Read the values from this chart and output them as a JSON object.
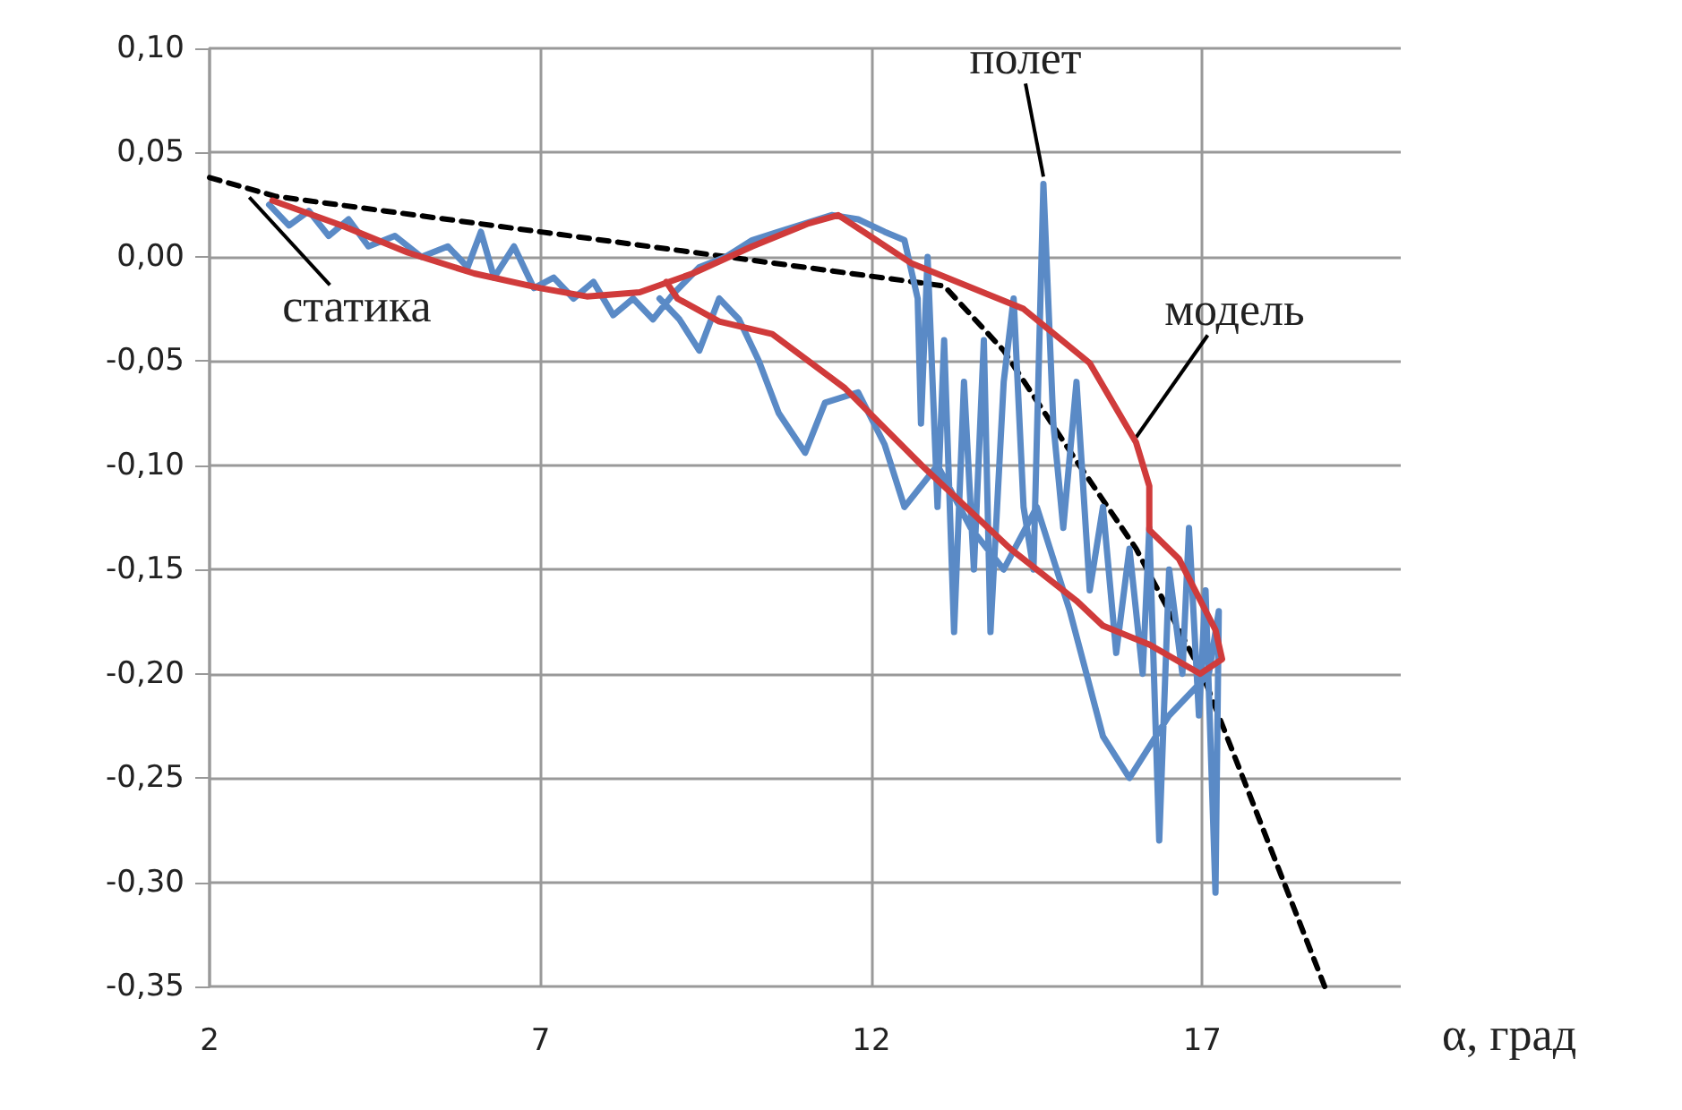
{
  "chart_data": {
    "type": "line",
    "xlabel": "α, град",
    "xlim": [
      2,
      20
    ],
    "xticks": [
      2,
      7,
      12,
      17
    ],
    "ylim": [
      -0.35,
      0.1
    ],
    "yticks": [
      {
        "value": 0.1,
        "label": "0,10"
      },
      {
        "value": 0.05,
        "label": "0,05"
      },
      {
        "value": 0,
        "label": "0,00"
      },
      {
        "value": -0.05,
        "label": "-0,05"
      },
      {
        "value": -0.1,
        "label": "-0,10"
      },
      {
        "value": -0.15,
        "label": "-0,15"
      },
      {
        "value": -0.2,
        "label": "-0,20"
      },
      {
        "value": -0.25,
        "label": "-0,25"
      },
      {
        "value": -0.3,
        "label": "-0,30"
      },
      {
        "value": -0.35,
        "label": "-0,35"
      }
    ],
    "grid": true,
    "marker": "none",
    "series": [
      {
        "color": "#000000",
        "line_style": "dashed",
        "x": [
          2,
          3,
          13.1,
          14,
          15.1,
          16,
          17,
          18.85
        ],
        "values": [
          0.038,
          0.029,
          -0.014,
          -0.045,
          -0.098,
          -0.14,
          -0.2,
          -0.35
        ]
      },
      {
        "color": "#5a8ac6",
        "line_style": "solid",
        "x": [
          2.9,
          3.2,
          3.5,
          3.8,
          4.1,
          4.4,
          4.8,
          5.2,
          5.6,
          5.9,
          6.1,
          6.3,
          6.6,
          6.9,
          7.2,
          7.5,
          7.8,
          8.1,
          8.4,
          8.7,
          9.0,
          9.4,
          9.8,
          10.2,
          10.6,
          11.0,
          11.4,
          11.8,
          12.2,
          12.5,
          12.7,
          12.75,
          12.85,
          13.0,
          13.1,
          13.25,
          13.4,
          13.55,
          13.7,
          13.8,
          14.0,
          14.15,
          14.3,
          14.45,
          14.6,
          14.75,
          14.9,
          15.1,
          15.3,
          15.5,
          15.7,
          15.9,
          16.1,
          16.2,
          16.35,
          16.5,
          16.7,
          16.8,
          16.95,
          17.05,
          17.2,
          17.25,
          17.1,
          16.5,
          15.9,
          15.5,
          15.0,
          14.5,
          14.0,
          13.5,
          13.0,
          12.5,
          12.2,
          11.8,
          11.3,
          11.0,
          10.6,
          10.3,
          10.0,
          9.7,
          9.4,
          9.1,
          8.8
        ],
        "values": [
          0.025,
          0.015,
          0.022,
          0.01,
          0.018,
          0.005,
          0.01,
          0.0,
          0.005,
          -0.005,
          0.012,
          -0.01,
          0.005,
          -0.015,
          -0.01,
          -0.02,
          -0.012,
          -0.028,
          -0.02,
          -0.03,
          -0.018,
          -0.005,
          0.0,
          0.008,
          0.012,
          0.016,
          0.02,
          0.018,
          0.012,
          0.008,
          -0.02,
          -0.08,
          0.0,
          -0.12,
          -0.04,
          -0.18,
          -0.06,
          -0.15,
          -0.04,
          -0.18,
          -0.06,
          -0.02,
          -0.12,
          -0.15,
          0.035,
          -0.08,
          -0.13,
          -0.06,
          -0.16,
          -0.12,
          -0.19,
          -0.14,
          -0.2,
          -0.13,
          -0.28,
          -0.15,
          -0.2,
          -0.13,
          -0.22,
          -0.16,
          -0.305,
          -0.17,
          -0.2,
          -0.22,
          -0.25,
          -0.23,
          -0.17,
          -0.12,
          -0.15,
          -0.13,
          -0.1,
          -0.12,
          -0.09,
          -0.065,
          -0.07,
          -0.094,
          -0.075,
          -0.05,
          -0.03,
          -0.02,
          -0.045,
          -0.03,
          -0.02
        ]
      },
      {
        "color": "#d03b3b",
        "line_style": "solid",
        "x": [
          2.95,
          4,
          5,
          6,
          7,
          7.7,
          8.5,
          9.3,
          10.2,
          11.05,
          11.5,
          12.6,
          14.3,
          15.3,
          16.0,
          16.2,
          16.2,
          16.65,
          17.2,
          17.3,
          16.97,
          16.2,
          15.5,
          15.1,
          14.1,
          12.76,
          11.6,
          10.5,
          9.7,
          9.07,
          8.9
        ],
        "values": [
          0.027,
          0.015,
          0.002,
          -0.008,
          -0.015,
          -0.019,
          -0.017,
          -0.008,
          0.005,
          0.016,
          0.02,
          -0.003,
          -0.025,
          -0.051,
          -0.089,
          -0.11,
          -0.131,
          -0.145,
          -0.179,
          -0.193,
          -0.2,
          -0.186,
          -0.177,
          -0.165,
          -0.14,
          -0.1,
          -0.063,
          -0.037,
          -0.031,
          -0.02,
          -0.012
        ]
      }
    ],
    "annotations": [
      {
        "text": "статика",
        "x": 2.6,
        "y": 0.032
      },
      {
        "text": "полет",
        "x": 14.6,
        "y": 0.035
      },
      {
        "text": "модель",
        "x": 16.0,
        "y": -0.09
      }
    ]
  }
}
